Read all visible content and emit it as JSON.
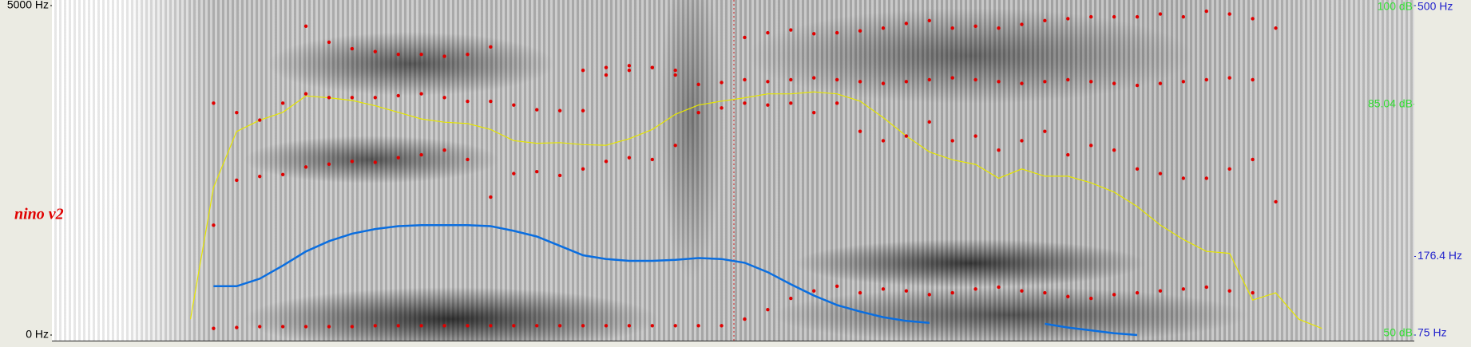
{
  "chart_data": {
    "type": "line",
    "annotation": "nino v2",
    "categories": [
      null,
      null,
      null,
      null,
      null,
      null,
      null,
      null,
      null,
      null,
      null,
      null,
      null,
      null,
      null,
      null,
      null,
      null,
      null,
      null,
      null,
      null,
      null,
      null,
      null,
      null,
      null,
      null,
      null,
      null,
      null,
      null,
      null,
      null,
      null,
      null,
      null,
      null,
      null,
      null,
      null,
      null,
      null,
      null,
      null,
      null,
      null,
      null,
      null,
      null,
      null,
      null,
      null,
      null,
      null,
      null,
      null,
      null,
      null,
      null
    ],
    "ylim": [
      0,
      5000
    ],
    "yticks": [
      {
        "value": 0,
        "label": "0 Hz"
      },
      {
        "value": 5000,
        "label": "5000 Hz"
      }
    ],
    "y2lim": [
      50,
      100
    ],
    "y2ticks": [
      {
        "value": 50,
        "label": "50 dB"
      },
      {
        "value": 85.04,
        "label": "85.04 dB"
      },
      {
        "value": 100,
        "label": "100 dB"
      }
    ],
    "y2color": "#33dd33",
    "y3lim": [
      75,
      500
    ],
    "y3ticks": [
      {
        "value": 75,
        "label": "75 Hz"
      },
      {
        "value": 176.4,
        "label": "176.4 Hz"
      },
      {
        "value": 500,
        "label": "500 Hz"
      }
    ],
    "y3color": "#2222cc",
    "series": [
      {
        "style": "line",
        "axis": "y2",
        "color": "#e6e600",
        "values": [
          null,
          null,
          null,
          null,
          null,
          null,
          52.4,
          72.4,
          80.9,
          82.6,
          83.8,
          86.3,
          86.0,
          85.6,
          84.8,
          83.8,
          82.8,
          82.3,
          82.1,
          81.2,
          79.5,
          79.1,
          79.2,
          78.9,
          78.8,
          79.8,
          81.2,
          83.5,
          84.9,
          85.5,
          86.0,
          86.6,
          86.6,
          86.9,
          86.6,
          85.5,
          83.0,
          80.2,
          77.8,
          76.6,
          75.9,
          73.8,
          75.2,
          74.1,
          74.1,
          73.1,
          71.7,
          69.5,
          66.7,
          64.5,
          62.7,
          62.4,
          55.3,
          56.4,
          52.4,
          51.0,
          null,
          null,
          null,
          null
        ]
      },
      {
        "style": "line",
        "axis": "y3",
        "color": "#0a6ee0",
        "values": [
          null,
          null,
          null,
          null,
          null,
          null,
          null,
          138.0,
          138.0,
          147.6,
          164.6,
          182.8,
          196.1,
          205.8,
          211.8,
          215.5,
          216.7,
          216.7,
          216.7,
          215.5,
          209.4,
          202.1,
          190.0,
          177.9,
          173.1,
          170.7,
          170.7,
          171.9,
          174.3,
          173.1,
          168.2,
          156.1,
          140.4,
          125.9,
          113.7,
          105.3,
          98.0,
          93.2,
          90.7,
          null,
          null,
          null,
          null,
          89.5,
          84.7,
          81.1,
          77.4,
          75,
          null,
          null,
          null,
          null,
          null,
          null,
          null,
          null,
          null,
          null,
          null,
          null
        ]
      },
      {
        "style": "dots",
        "color": "#e00000",
        "values": [
          null,
          null,
          null,
          null,
          null,
          null,
          null,
          100,
          114,
          128,
          128,
          128,
          128,
          128,
          142,
          142,
          142,
          142,
          142,
          142,
          142,
          142,
          142,
          142,
          142,
          142,
          142,
          142,
          142,
          142,
          242,
          385,
          556,
          670,
          741,
          641,
          698,
          670,
          613,
          641,
          698,
          727,
          670,
          641,
          584,
          556,
          613,
          641,
          670,
          698,
          727,
          670,
          641,
          null,
          null,
          null,
          null,
          null,
          null,
          null
        ]
      },
      {
        "style": "dots",
        "color": "#e00000",
        "values": [
          null,
          null,
          null,
          null,
          null,
          null,
          null,
          1667,
          2350,
          2407,
          2436,
          2550,
          2593,
          2635,
          2621,
          2692,
          2735,
          2806,
          2664,
          2094,
          2450,
          2479,
          2422,
          2521,
          2635,
          2692,
          2664,
          2877,
          3376,
          3447,
          3519,
          3490,
          3519,
          3376,
          3519,
          3091,
          2949,
          3020,
          3234,
          2949,
          3020,
          2806,
          2949,
          3091,
          2735,
          2877,
          2806,
          2521,
          2450,
          2379,
          2379,
          2521,
          2664,
          2023,
          null,
          null,
          null,
          null,
          null,
          null
        ]
      },
      {
        "style": "dots",
        "color": "#e00000",
        "values": [
          null,
          null,
          null,
          null,
          null,
          null,
          null,
          3519,
          3376,
          3262,
          3519,
          3661,
          3604,
          3604,
          3604,
          3633,
          3661,
          3604,
          3547,
          3547,
          3490,
          3419,
          3405,
          3405,
          3946,
          4017,
          4060,
          3946,
          3803,
          3832,
          3875,
          3846,
          3875,
          3903,
          3875,
          3846,
          3818,
          3846,
          3875,
          3903,
          3875,
          3846,
          3818,
          3846,
          3875,
          3846,
          3818,
          3789,
          3818,
          3846,
          3875,
          3903,
          3875,
          null,
          null,
          null,
          null,
          null,
          null,
          null
        ]
      },
      {
        "style": "dots",
        "color": "#e00000",
        "values": [
          null,
          null,
          null,
          null,
          null,
          null,
          null,
          null,
          null,
          null,
          null,
          4687,
          4444,
          4345,
          4302,
          4259,
          4259,
          4231,
          4259,
          4373,
          null,
          null,
          null,
          4017,
          4060,
          4088,
          4060,
          4017,
          null,
          null,
          4516,
          4587,
          4630,
          4573,
          4587,
          4616,
          4658,
          4729,
          4772,
          4658,
          4687,
          4658,
          4715,
          4772,
          4801,
          4829,
          4829,
          4829,
          4872,
          4829,
          4915,
          4872,
          4801,
          4658,
          null,
          null,
          null,
          null,
          null,
          null
        ]
      }
    ]
  }
}
